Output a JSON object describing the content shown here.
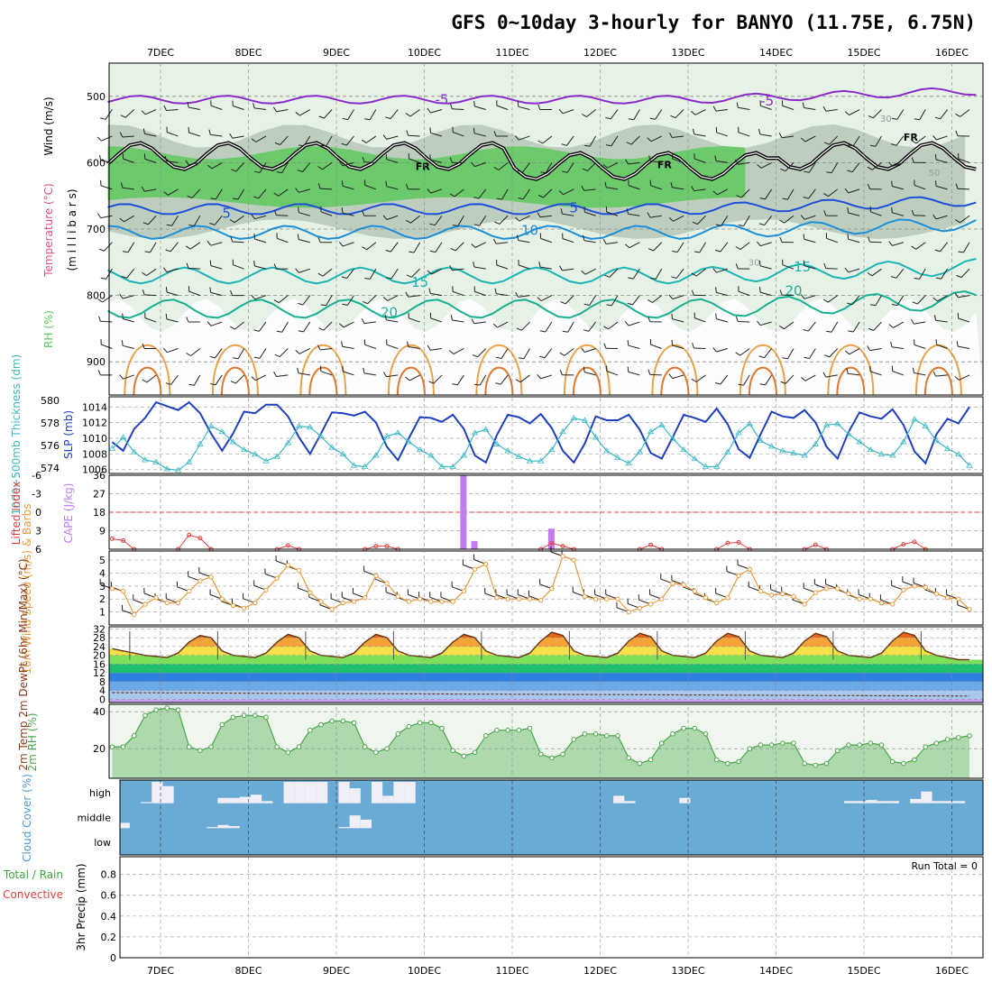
{
  "title": "GFS 0~10day 3-hourly for BANYO (11.75E, 6.75N)",
  "date_labels": [
    "7DEC",
    "8DEC",
    "9DEC",
    "10DEC",
    "11DEC",
    "12DEC",
    "13DEC",
    "14DEC",
    "15DEC",
    "16DEC"
  ],
  "colors": {
    "rh_green": "#5ec85e",
    "rh_light": "#e6f2e6",
    "rh_gray": "#b4c4b4",
    "wind": "#000000",
    "temp_purple": "#8a2bc8",
    "temp_blue": "#1f4fd8",
    "slp": "#1e3fc0",
    "thickness": "#3bb8c4",
    "cape": "#c27cf0",
    "lifted": "#e04040",
    "wind10": "#e89a3c",
    "rh2m": "#4aa64a",
    "cloud_bg": "#6aabd6",
    "cloud_bar": "#f0eef6"
  },
  "chart_data": [
    {
      "id": "upper-air",
      "type": "heatmap",
      "title": "",
      "ylabel_parts": [
        "Wind (m/s)",
        "Temperature (°C)",
        "RH (%)",
        "(m i l l i b a r s)"
      ],
      "y_ticks": [
        "500",
        "600",
        "700",
        "800",
        "900"
      ],
      "ylim": [
        450,
        950
      ],
      "y_inverted": true,
      "freezing_label": "FR",
      "isotherm_labels": [
        {
          "label": "-5",
          "day": 3.2,
          "p": 505
        },
        {
          "label": "-5",
          "day": 6.9,
          "p": 507
        },
        {
          "label": "5",
          "day": 0.75,
          "p": 676
        },
        {
          "label": "5",
          "day": 4.7,
          "p": 668
        },
        {
          "label": "10",
          "day": 4.2,
          "p": 702
        },
        {
          "label": "15",
          "day": 2.95,
          "p": 780
        },
        {
          "label": "15",
          "day": 7.3,
          "p": 757
        },
        {
          "label": "20",
          "day": 2.6,
          "p": 826
        },
        {
          "label": "20",
          "day": 7.2,
          "p": 793
        }
      ],
      "rh_labels": [
        {
          "label": "30",
          "day": 8.25,
          "p": 538
        },
        {
          "label": "50",
          "day": 8.8,
          "p": 620
        },
        {
          "label": "30",
          "day": 6.75,
          "p": 755
        }
      ]
    },
    {
      "id": "slp-thickness",
      "type": "line",
      "ylabel_left": "1000~500mb Thickness (dm)",
      "ylabel_right": "SLP (mb)",
      "left_ticks": [
        "574",
        "576",
        "578",
        "580"
      ],
      "right_ticks": [
        "1006",
        "1008",
        "1010",
        "1012",
        "1014"
      ],
      "thickness_ylim": [
        573.5,
        580.3
      ],
      "slp_ylim": [
        1005.5,
        1015.3
      ],
      "x_days": [
        0,
        0.125,
        0.25,
        0.375,
        0.5,
        0.625,
        0.75,
        0.875,
        1.0,
        1.125,
        1.25,
        1.375,
        1.5,
        1.625,
        1.75,
        1.875,
        2.0,
        2.125,
        2.25,
        2.375,
        2.5,
        2.625,
        2.75,
        2.875,
        3.0,
        3.125,
        3.25,
        3.375,
        3.5,
        3.625,
        3.75,
        3.875,
        4.0,
        4.125,
        4.25,
        4.375,
        4.5,
        4.625,
        4.75,
        4.875,
        5.0,
        5.125,
        5.25,
        5.375,
        5.5,
        5.625,
        5.75,
        5.875,
        6.0,
        6.125,
        6.25,
        6.375,
        6.5,
        6.625,
        6.75,
        6.875,
        7.0,
        7.125,
        7.25,
        7.375,
        7.5,
        7.625,
        7.75,
        7.875,
        8.0,
        8.125,
        8.25,
        8.375,
        8.5,
        8.625,
        8.75,
        8.875,
        9.0,
        9.125,
        9.25,
        9.375,
        9.5,
        9.625,
        9.75
      ],
      "series": [
        {
          "name": "SLP (mb)",
          "axis": "right",
          "values": [
            1009.5,
            1008.4,
            1011.2,
            1012.6,
            1014.6,
            1014.1,
            1013.6,
            1014.6,
            1013.2,
            1010.6,
            1008.4,
            1010.6,
            1013.4,
            1013.2,
            1014.3,
            1014.3,
            1012.8,
            1010.1,
            1008.0,
            1010.6,
            1013.3,
            1013.2,
            1012.9,
            1013.4,
            1012.0,
            1008.9,
            1007.2,
            1010.0,
            1012.7,
            1012.6,
            1012.1,
            1013.0,
            1011.2,
            1007.8,
            1006.9,
            1010.4,
            1013.0,
            1012.7,
            1011.9,
            1013.1,
            1011.3,
            1008.4,
            1006.9,
            1009.3,
            1012.8,
            1012.3,
            1012.3,
            1013.0,
            1011.1,
            1008.1,
            1007.4,
            1010.1,
            1013.0,
            1012.6,
            1012.1,
            1013.8,
            1011.8,
            1008.6,
            1007.5,
            1010.5,
            1013.4,
            1012.8,
            1012.6,
            1013.6,
            1012.0,
            1008.9,
            1007.4,
            1010.8,
            1013.3,
            1012.8,
            1012.5,
            1013.7,
            1011.7,
            1008.3,
            1006.8,
            1010.5,
            1012.5,
            1011.9,
            1014.0
          ]
        },
        {
          "name": "Thickness (dm)",
          "axis": "left",
          "values": [
            575.7,
            576.7,
            575.4,
            574.7,
            574.5,
            573.9,
            573.8,
            574.5,
            576.1,
            577.7,
            577.2,
            576.3,
            575.6,
            575.2,
            574.6,
            575.0,
            576.2,
            577.7,
            577.6,
            576.8,
            575.8,
            575.2,
            574.2,
            574.1,
            575.1,
            576.8,
            577.1,
            576.3,
            575.6,
            575.1,
            574.1,
            574.1,
            575.1,
            577.1,
            577.4,
            576.1,
            575.5,
            575.0,
            574.6,
            574.6,
            575.6,
            577.2,
            578.4,
            578.2,
            576.7,
            575.5,
            574.9,
            574.4,
            575.4,
            577.2,
            577.8,
            576.6,
            575.6,
            574.8,
            574.1,
            574.1,
            575.4,
            577.1,
            577.9,
            576.4,
            575.9,
            575.5,
            575.3,
            575.1,
            576.1,
            577.8,
            577.9,
            577.0,
            576.3,
            575.6,
            575.2,
            575.1,
            576.3,
            578.3,
            577.7,
            576.4,
            575.7,
            575.2,
            574.2
          ]
        }
      ]
    },
    {
      "id": "cape-li",
      "type": "bar",
      "ylabel_left": "Lifted Index",
      "ylabel_right": "CAPE (J/kg)",
      "left_ticks": [
        "-6",
        "-3",
        "0",
        "3",
        "6"
      ],
      "right_ticks": [
        "9",
        "18",
        "27",
        "36"
      ],
      "cape_ylim": [
        0,
        36
      ],
      "li_ylim": [
        6,
        -6
      ],
      "cape_bars": [
        {
          "day": 4.0,
          "value": 36
        },
        {
          "day": 4.125,
          "value": 4
        },
        {
          "day": 5.0,
          "value": 10
        }
      ],
      "li_points": [
        {
          "day": 0,
          "value": 4.3
        },
        {
          "day": 0.125,
          "value": 4.6
        },
        {
          "day": 0.25,
          "value": 6
        },
        {
          "day": 0.75,
          "value": 6
        },
        {
          "day": 0.875,
          "value": 3.7
        },
        {
          "day": 1.0,
          "value": 4.2
        },
        {
          "day": 1.125,
          "value": 6
        },
        {
          "day": 1.875,
          "value": 6
        },
        {
          "day": 2.0,
          "value": 5.4
        },
        {
          "day": 2.125,
          "value": 6
        },
        {
          "day": 2.875,
          "value": 6
        },
        {
          "day": 3.0,
          "value": 5.5
        },
        {
          "day": 3.125,
          "value": 5.5
        },
        {
          "day": 3.25,
          "value": 6
        },
        {
          "day": 4.875,
          "value": 6
        },
        {
          "day": 5.0,
          "value": 5.0
        },
        {
          "day": 5.125,
          "value": 5.5
        },
        {
          "day": 5.25,
          "value": 6
        },
        {
          "day": 6.0,
          "value": 6
        },
        {
          "day": 6.125,
          "value": 5.3
        },
        {
          "day": 6.25,
          "value": 6
        },
        {
          "day": 6.875,
          "value": 6
        },
        {
          "day": 7.0,
          "value": 5.0
        },
        {
          "day": 7.125,
          "value": 4.9
        },
        {
          "day": 7.25,
          "value": 6
        },
        {
          "day": 7.875,
          "value": 6
        },
        {
          "day": 8.0,
          "value": 5.3
        },
        {
          "day": 8.125,
          "value": 6
        },
        {
          "day": 8.875,
          "value": 6
        },
        {
          "day": 9.0,
          "value": 5.2
        },
        {
          "day": 9.125,
          "value": 4.8
        },
        {
          "day": 9.25,
          "value": 6
        }
      ]
    },
    {
      "id": "wind10",
      "type": "line",
      "ylabel": "10m Wind Speed (m/s) & Barbs",
      "y_ticks": [
        "1",
        "2",
        "3",
        "4",
        "5"
      ],
      "ylim": [
        0,
        5.7
      ],
      "series": [
        {
          "name": "10m Wind Speed (m/s)",
          "values": [
            2.8,
            2.6,
            0.8,
            1.6,
            2.1,
            1.7,
            1.7,
            2.6,
            3.4,
            3.7,
            2.0,
            1.5,
            1.3,
            1.7,
            2.7,
            3.6,
            4.6,
            4.2,
            2.5,
            1.8,
            1.2,
            1.7,
            1.8,
            2.1,
            3.8,
            3.2,
            2.2,
            1.8,
            2.0,
            1.8,
            1.8,
            1.8,
            2.6,
            4.3,
            4.7,
            2.1,
            2.0,
            2.0,
            2.0,
            1.9,
            2.8,
            5.3,
            5.0,
            2.2,
            2.0,
            2.0,
            2.0,
            1.0,
            1.3,
            1.6,
            2.0,
            3.2,
            3.1,
            2.6,
            2.1,
            1.7,
            2.1,
            3.8,
            4.3,
            2.6,
            2.3,
            2.4,
            2.2,
            1.6,
            2.5,
            2.8,
            2.8,
            2.4,
            2.0,
            2.0,
            1.7,
            1.6,
            2.7,
            3.0,
            2.9,
            2.4,
            2.1,
            2.0,
            1.2
          ]
        }
      ]
    },
    {
      "id": "temp2m",
      "type": "area",
      "ylabel": "2m Temp 2m DewPt (6hr Min/Max) (°C)",
      "y_ticks": [
        "0",
        "4",
        "8",
        "12",
        "16",
        "20",
        "24",
        "28",
        "32"
      ],
      "ylim": [
        -1.5,
        33
      ],
      "dewpoint_value": 3,
      "series": [
        {
          "name": "2m Temp (°C)",
          "values": [
            23,
            22,
            21,
            20,
            19.5,
            19,
            21,
            26,
            29,
            28,
            22,
            20,
            19.5,
            19,
            21,
            26,
            29.5,
            28,
            22,
            20,
            19.5,
            19,
            21,
            26,
            29.5,
            28,
            22,
            20,
            19.5,
            19,
            21,
            26,
            29.5,
            28,
            22,
            20,
            19.5,
            19,
            21,
            26.5,
            30.5,
            29,
            22,
            20,
            19.5,
            19,
            21,
            26.5,
            30,
            28.5,
            22,
            20,
            19.5,
            19,
            21,
            26.5,
            30,
            28.5,
            22,
            20,
            19.5,
            19,
            21,
            26.5,
            30,
            28.5,
            22,
            20,
            19.5,
            19,
            21,
            26.5,
            30.5,
            29,
            22,
            20,
            19,
            18,
            18
          ]
        }
      ]
    },
    {
      "id": "rh2m",
      "type": "area",
      "ylabel": "2m RH (%)",
      "y_ticks": [
        "20",
        "40"
      ],
      "ylim": [
        4,
        44
      ],
      "series": [
        {
          "name": "2m RH (%)",
          "values": [
            21,
            21,
            27,
            38,
            41,
            42,
            41,
            21,
            19,
            21,
            33,
            37,
            38,
            38,
            37,
            21,
            18,
            21,
            30,
            33,
            35,
            35,
            34,
            21,
            18,
            20,
            28,
            32,
            34,
            34,
            31,
            19,
            16,
            18,
            27,
            30,
            30,
            30,
            31,
            17,
            15,
            17,
            25,
            28,
            28,
            27,
            27,
            15,
            12,
            14,
            23,
            28,
            31,
            31,
            28,
            14,
            12,
            13,
            20,
            22,
            22,
            23,
            23,
            12,
            11,
            12,
            19,
            22,
            22,
            23,
            22,
            13,
            12,
            14,
            21,
            23,
            25,
            26,
            27
          ]
        }
      ]
    },
    {
      "id": "cloud",
      "type": "bar",
      "ylabel": "Cloud Cover (%)",
      "levels": [
        "high",
        "middle",
        "low"
      ],
      "high": [
        0,
        0,
        0,
        5,
        100,
        80,
        0,
        0,
        0,
        0,
        25,
        25,
        30,
        40,
        10,
        0,
        100,
        100,
        100,
        100,
        0,
        100,
        70,
        0,
        100,
        35,
        100,
        100,
        0,
        0,
        0,
        0,
        0,
        0,
        0,
        0,
        0,
        0,
        0,
        0,
        0,
        0,
        0,
        0,
        0,
        0,
        35,
        10,
        0,
        0,
        0,
        0,
        25,
        0,
        0,
        0,
        0,
        0,
        0,
        0,
        0,
        0,
        0,
        0,
        0,
        0,
        0,
        10,
        10,
        15,
        10,
        10,
        0,
        20,
        55,
        10,
        10,
        10,
        0
      ],
      "middle": [
        0,
        25,
        0,
        0,
        0,
        0,
        0,
        0,
        0,
        5,
        15,
        10,
        0,
        0,
        0,
        0,
        0,
        0,
        0,
        0,
        0,
        5,
        60,
        40,
        0,
        0,
        0,
        0,
        0,
        0,
        0,
        0,
        0,
        0,
        0,
        0,
        0,
        0,
        0,
        0,
        0,
        0,
        0,
        0,
        0,
        0,
        0,
        0,
        0,
        0,
        0,
        0,
        0,
        0,
        0,
        0,
        0,
        0,
        0,
        0,
        0,
        0,
        0,
        0,
        0,
        0,
        0,
        0,
        0,
        0,
        0,
        0,
        0,
        0,
        0,
        0,
        0,
        0,
        0
      ],
      "low": [
        0,
        0,
        0,
        0,
        0,
        0,
        0,
        0,
        0,
        0,
        0,
        0,
        0,
        0,
        0,
        0,
        0,
        0,
        0,
        0,
        0,
        0,
        0,
        0,
        0,
        0,
        0,
        0,
        0,
        0,
        0,
        0,
        0,
        0,
        0,
        0,
        0,
        0,
        0,
        0,
        0,
        0,
        0,
        0,
        0,
        0,
        0,
        0,
        0,
        0,
        0,
        0,
        0,
        0,
        0,
        0,
        0,
        0,
        0,
        0,
        0,
        0,
        0,
        0,
        0,
        0,
        0,
        0,
        0,
        0,
        0,
        0,
        0,
        0,
        0,
        0,
        0,
        0,
        0
      ]
    },
    {
      "id": "precip",
      "type": "bar",
      "ylabel_parts": [
        "Total / Rain",
        "Convective",
        "3hr Precip (mm)"
      ],
      "y_ticks": [
        "0",
        "0.2",
        "0.4",
        "0.6",
        "0.8"
      ],
      "ylim": [
        0,
        0.97
      ],
      "run_total_label": "Run Total = 0",
      "values": []
    }
  ]
}
